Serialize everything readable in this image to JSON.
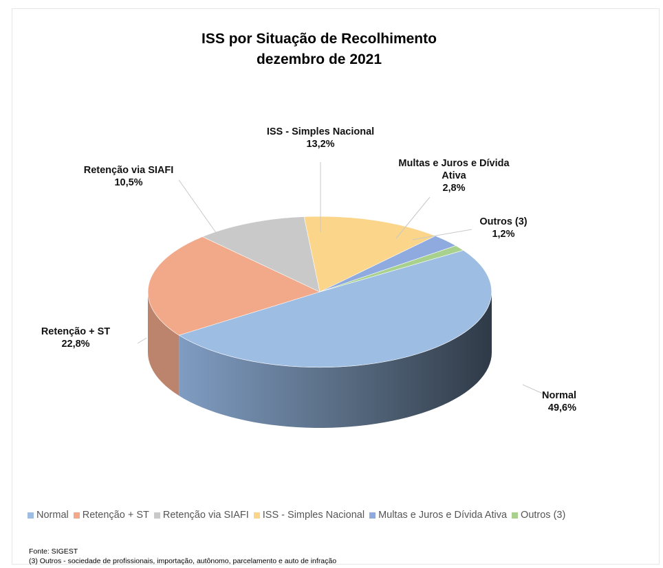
{
  "chart_data": {
    "type": "pie",
    "style": "3d",
    "title": "ISS por Situação de Recolhimento",
    "subtitle": "dezembro de 2021",
    "categories": [
      "Normal",
      "Retenção  + ST",
      "Retenção via SIAFI",
      "ISS - Simples Nacional",
      "Multas e Juros e Dívida Ativa",
      "Outros (3)"
    ],
    "values": [
      49.6,
      22.8,
      10.5,
      13.2,
      2.8,
      1.2
    ],
    "value_labels": [
      "49,6%",
      "22,8%",
      "10,5%",
      "13,2%",
      "2,8%",
      "1,2%"
    ],
    "label_lines": [
      [
        "Normal"
      ],
      [
        "Retenção  + ST"
      ],
      [
        "Retenção via SIAFI"
      ],
      [
        "ISS - Simples Nacional"
      ],
      [
        "Multas e Juros e Dívida",
        "Ativa"
      ],
      [
        "Outros (3)"
      ]
    ],
    "colors": [
      "#9dbde3",
      "#f1a98a",
      "#c9c9c9",
      "#fbd58a",
      "#8eaadf",
      "#a9d18e"
    ],
    "legend_position": "bottom"
  },
  "footnotes": {
    "source": "Fonte: SIGEST",
    "note": "(3) Outros - sociedade de profissionais, importação, autônomo, parcelamento e auto de infração"
  }
}
